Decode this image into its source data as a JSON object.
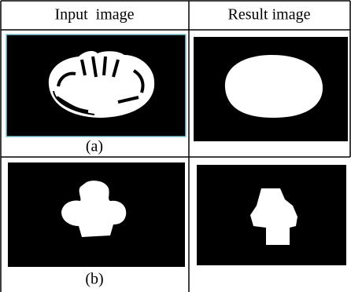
{
  "table": {
    "header": [
      "Input  image",
      "Result image"
    ],
    "rows": [
      {
        "label": "(a)"
      },
      {
        "label": "(b)"
      }
    ]
  }
}
